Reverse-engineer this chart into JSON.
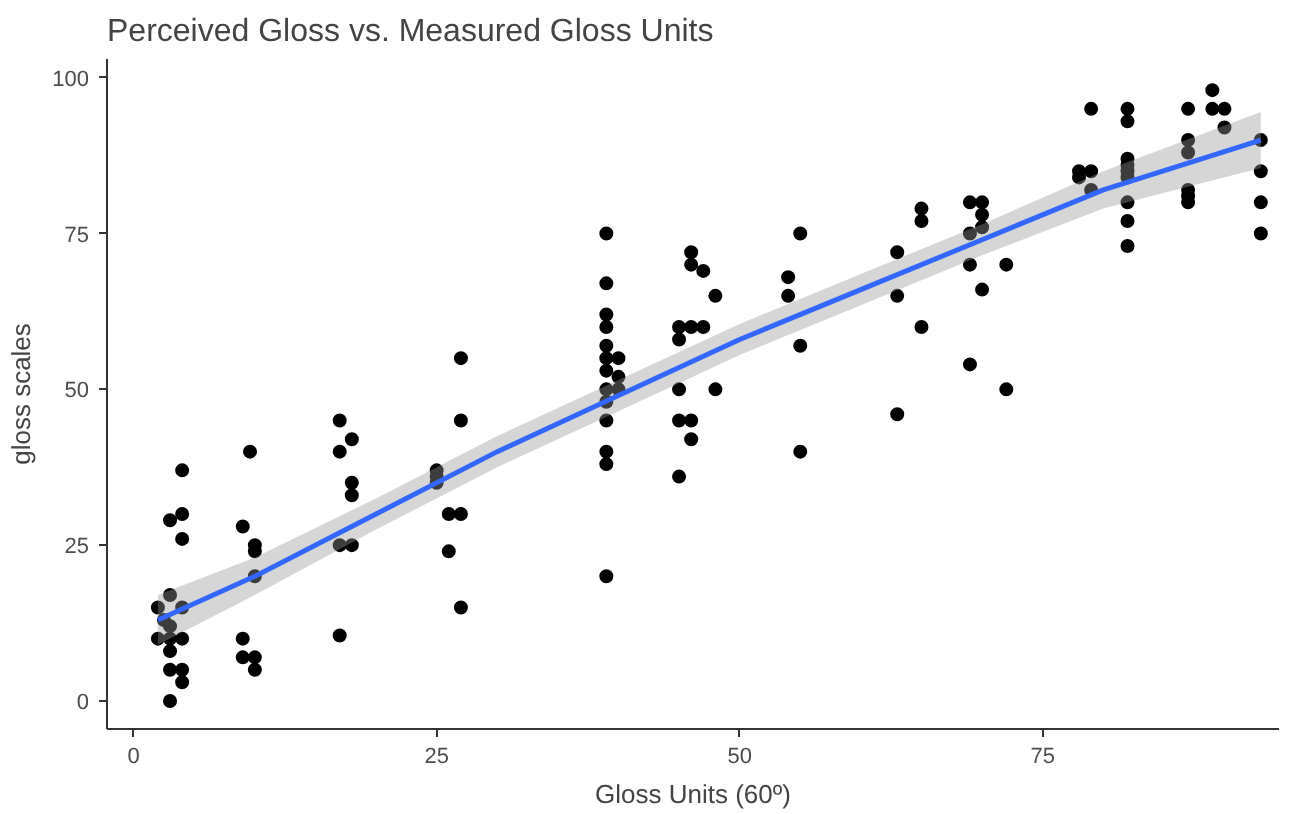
{
  "chart_data": {
    "type": "scatter",
    "title": "Perceived Gloss vs. Measured Gloss Units",
    "xlabel": "Gloss Units (60º)",
    "ylabel": "gloss scales",
    "xlim": [
      -2.2,
      94.5
    ],
    "ylim": [
      -4.5,
      103
    ],
    "xticks": [
      0,
      25,
      50,
      75
    ],
    "yticks": [
      0,
      25,
      50,
      75,
      100
    ],
    "grid": false,
    "series": [
      {
        "marker": "circle",
        "color": "#000000",
        "x": [
          2,
          2,
          3,
          3,
          3,
          3,
          3,
          3,
          3,
          4,
          4,
          4,
          4,
          4,
          4,
          4,
          2.5,
          9,
          9,
          9,
          10,
          10,
          10,
          10,
          10,
          9.6,
          17,
          18,
          17,
          18,
          18,
          17,
          18,
          17,
          25,
          25,
          25,
          26,
          26,
          27,
          27,
          27,
          27,
          39,
          39,
          39,
          39,
          39,
          39,
          39,
          39,
          39,
          39,
          39,
          39,
          39,
          40,
          40,
          40,
          46,
          46,
          45,
          46,
          47,
          45,
          48,
          45,
          45,
          46,
          46,
          45,
          48,
          47,
          54,
          54,
          55,
          55,
          55,
          63,
          63,
          63,
          65,
          65,
          65,
          69,
          70,
          70,
          69,
          70,
          69,
          70,
          69,
          72,
          72,
          78,
          78,
          79,
          79,
          79,
          82,
          82,
          82,
          82,
          82,
          82,
          82,
          82,
          82,
          87,
          87,
          87,
          87,
          87,
          87,
          89,
          89,
          90,
          90,
          93,
          93,
          93,
          93
        ],
        "values": [
          15,
          10,
          17,
          12,
          10,
          8,
          5,
          0,
          29,
          30,
          37,
          26,
          15,
          10,
          5,
          3,
          13,
          28,
          10,
          7,
          25,
          24,
          20,
          7,
          5,
          40,
          45,
          42,
          40,
          35,
          33,
          25,
          25,
          10.5,
          37,
          36,
          35,
          30,
          24,
          55,
          45,
          30,
          15,
          75,
          67,
          62,
          60,
          57,
          55,
          53,
          50,
          48,
          45,
          40,
          38,
          20,
          52,
          50,
          55,
          72,
          70,
          60,
          60,
          60,
          58,
          65,
          50,
          45,
          45,
          42,
          36,
          50,
          69,
          68,
          65,
          75,
          57,
          40,
          72,
          65,
          46,
          79,
          77,
          60,
          80,
          78,
          80,
          75,
          76,
          70,
          66,
          54,
          70,
          50,
          85,
          84,
          95,
          85,
          82,
          95,
          93,
          87,
          86,
          85,
          84,
          80,
          77,
          73,
          95,
          90,
          88,
          82,
          81,
          80,
          98,
          95,
          95,
          92,
          90,
          85,
          80,
          75
        ]
      },
      {
        "type": "line",
        "color": "#3366ff",
        "x": [
          2,
          10,
          20,
          30,
          40,
          50,
          60,
          70,
          80,
          93
        ],
        "values": [
          13,
          20,
          30,
          40,
          49,
          58,
          66,
          74,
          82,
          90
        ],
        "lower": [
          9,
          17,
          27.5,
          37.5,
          46.5,
          55.5,
          63.5,
          71.5,
          79,
          85.5
        ],
        "upper": [
          17,
          23,
          32.5,
          42.5,
          51.5,
          60.5,
          68.5,
          76.5,
          85,
          94.5
        ]
      }
    ]
  }
}
